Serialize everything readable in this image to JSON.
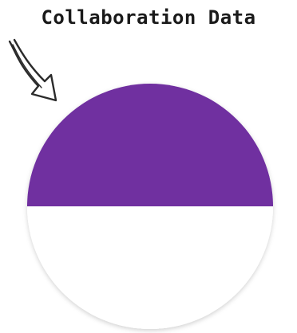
{
  "chart_data": {
    "type": "pie",
    "title": "Collaboration Data",
    "categories": [
      "",
      ""
    ],
    "values": [
      50,
      50
    ],
    "colors": [
      "#7030a0",
      "#ffffff"
    ]
  }
}
